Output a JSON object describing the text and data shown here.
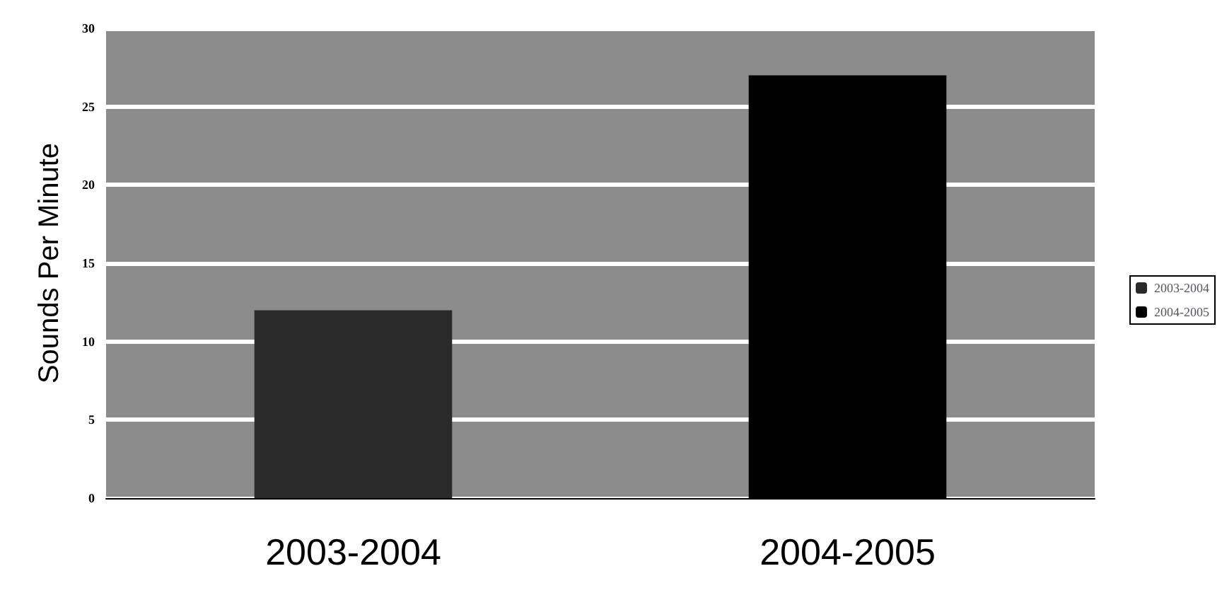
{
  "chart_data": {
    "type": "bar",
    "ylabel": "Sounds Per Minute",
    "categories": [
      "2003-2004",
      "2004-2005"
    ],
    "series": [
      {
        "name": "2003-2004",
        "color": "#2a2a2a",
        "values": [
          12,
          null
        ]
      },
      {
        "name": "2004-2005",
        "color": "#000000",
        "values": [
          null,
          27
        ]
      }
    ],
    "ylim": [
      0,
      30
    ],
    "yticks": [
      0,
      5,
      10,
      15,
      20,
      25,
      30
    ],
    "grid": "y",
    "legend": "right"
  }
}
